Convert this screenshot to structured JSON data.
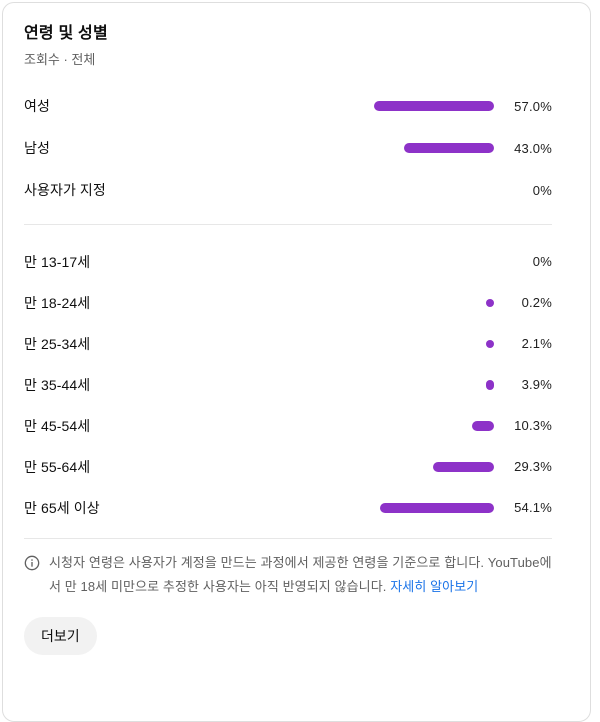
{
  "card": {
    "title": "연령 및 성별",
    "subtitle": "조회수 · 전체",
    "more_button_label": "더보기"
  },
  "chart_data": {
    "type": "bar",
    "orientation": "horizontal",
    "unit": "percent",
    "axis_range": [
      0,
      100
    ],
    "bar_color": "#8d32c8",
    "sections": [
      {
        "id": "gender",
        "rows": [
          {
            "label": "여성",
            "value": 57.0,
            "display": "57.0%"
          },
          {
            "label": "남성",
            "value": 43.0,
            "display": "43.0%"
          },
          {
            "label": "사용자가 지정",
            "value": 0,
            "display": "0%"
          }
        ]
      },
      {
        "id": "age",
        "rows": [
          {
            "label": "만 13-17세",
            "value": 0,
            "display": "0%"
          },
          {
            "label": "만 18-24세",
            "value": 0.2,
            "display": "0.2%"
          },
          {
            "label": "만 25-34세",
            "value": 2.1,
            "display": "2.1%"
          },
          {
            "label": "만 35-44세",
            "value": 3.9,
            "display": "3.9%"
          },
          {
            "label": "만 45-54세",
            "value": 10.3,
            "display": "10.3%"
          },
          {
            "label": "만 55-64세",
            "value": 29.3,
            "display": "29.3%"
          },
          {
            "label": "만 65세 이상",
            "value": 54.1,
            "display": "54.1%"
          }
        ]
      }
    ]
  },
  "footer": {
    "note": "시청자 연령은 사용자가 계정을 만드는 과정에서 제공한 연령을 기준으로 합니다. YouTube에서 만 18세 미만으로 추정한 사용자는 아직 반영되지 않습니다. ",
    "link_label": "자세히 알아보기"
  },
  "colors": {
    "bar": "#8d32c8",
    "link": "#1a73e8",
    "text_primary": "#0f0f0f",
    "text_secondary": "#606060",
    "divider": "#e7e7e7",
    "button_background": "#f2f2f2"
  },
  "icons": {
    "footer": "info-circle-icon"
  }
}
